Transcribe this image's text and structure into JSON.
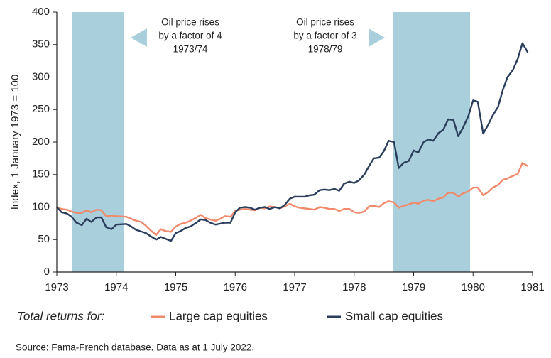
{
  "chart_data": {
    "type": "line",
    "ylabel": "Index, 1 January 1973 = 100",
    "legend_title": "Total returns for:",
    "source": "Source: Fama-French database. Data as at 1 July 2022.",
    "xlim": [
      1973,
      1981
    ],
    "xticks": [
      1973,
      1974,
      1975,
      1976,
      1977,
      1978,
      1979,
      1980,
      1981
    ],
    "ylim": [
      0,
      400
    ],
    "yticks": [
      0,
      50,
      100,
      150,
      200,
      250,
      300,
      350,
      400
    ],
    "shaded_periods": [
      {
        "x0": 1973.26,
        "x1": 1974.13,
        "color": "#a9cfdc"
      },
      {
        "x0": 1978.65,
        "x1": 1979.95,
        "color": "#a9cfdc"
      }
    ],
    "annotations": [
      {
        "lines": [
          "Oil price rises",
          "by a factor of 4",
          "1973/74"
        ]
      },
      {
        "lines": [
          "Oil price rises",
          "by a factor of 3",
          "1978/79"
        ]
      }
    ],
    "series": [
      {
        "name": "Large cap equities",
        "color": "#f08a6a",
        "x": [
          1973.0,
          1973.08,
          1973.17,
          1973.25,
          1973.33,
          1973.42,
          1973.5,
          1973.58,
          1973.67,
          1973.75,
          1973.83,
          1973.92,
          1974.0,
          1974.17,
          1974.25,
          1974.33,
          1974.42,
          1974.5,
          1974.58,
          1974.67,
          1974.75,
          1974.83,
          1974.92,
          1975.0,
          1975.08,
          1975.17,
          1975.25,
          1975.33,
          1975.42,
          1975.5,
          1975.58,
          1975.67,
          1975.75,
          1975.83,
          1975.92,
          1976.0,
          1976.08,
          1976.17,
          1976.25,
          1976.33,
          1976.42,
          1976.5,
          1976.58,
          1976.67,
          1976.75,
          1976.83,
          1976.92,
          1977.0,
          1977.08,
          1977.25,
          1977.33,
          1977.42,
          1977.5,
          1977.58,
          1977.67,
          1977.75,
          1977.83,
          1977.92,
          1978.0,
          1978.08,
          1978.17,
          1978.25,
          1978.33,
          1978.42,
          1978.5,
          1978.58,
          1978.67,
          1978.75,
          1978.83,
          1978.92,
          1979.0,
          1979.08,
          1979.17,
          1979.25,
          1979.33,
          1979.42,
          1979.5,
          1979.58,
          1979.67,
          1979.75,
          1979.83,
          1979.92,
          1980.0,
          1980.08,
          1980.17,
          1980.25,
          1980.33,
          1980.42,
          1980.5,
          1980.58,
          1980.67,
          1980.75,
          1980.83,
          1980.92
        ],
        "values": [
          100,
          97,
          96,
          93,
          91,
          91,
          95,
          92,
          96,
          95,
          86,
          87,
          86,
          85,
          82,
          79,
          77,
          71,
          64,
          57,
          66,
          63,
          62,
          70,
          74,
          76,
          79,
          83,
          88,
          83,
          81,
          79,
          82,
          86,
          85,
          94,
          96,
          97,
          96,
          95,
          99,
          98,
          101,
          100,
          98,
          101,
          105,
          101,
          99,
          97,
          96,
          100,
          99,
          97,
          97,
          94,
          97,
          97,
          92,
          91,
          93,
          101,
          102,
          100,
          106,
          109,
          107,
          99,
          102,
          104,
          107,
          105,
          110,
          111,
          109,
          113,
          115,
          122,
          122,
          116,
          121,
          124,
          130,
          130,
          118,
          123,
          130,
          134,
          142,
          144,
          148,
          151,
          168,
          163
        ]
      },
      {
        "name": "Small cap equities",
        "color": "#2b3e5c",
        "x": [
          1973.0,
          1973.08,
          1973.17,
          1973.25,
          1973.33,
          1973.42,
          1973.5,
          1973.58,
          1973.67,
          1973.75,
          1973.83,
          1973.92,
          1974.0,
          1974.17,
          1974.25,
          1974.33,
          1974.5,
          1974.58,
          1974.67,
          1974.75,
          1974.92,
          1975.0,
          1975.08,
          1975.17,
          1975.25,
          1975.33,
          1975.42,
          1975.5,
          1975.58,
          1975.67,
          1975.83,
          1975.92,
          1976.0,
          1976.08,
          1976.17,
          1976.25,
          1976.33,
          1976.42,
          1976.5,
          1976.58,
          1976.67,
          1976.75,
          1976.83,
          1976.92,
          1977.0,
          1977.17,
          1977.25,
          1977.33,
          1977.42,
          1977.5,
          1977.58,
          1977.67,
          1977.75,
          1977.83,
          1977.92,
          1978.0,
          1978.08,
          1978.17,
          1978.25,
          1978.33,
          1978.42,
          1978.5,
          1978.58,
          1978.67,
          1978.75,
          1978.83,
          1978.92,
          1979.0,
          1979.08,
          1979.17,
          1979.25,
          1979.33,
          1979.42,
          1979.5,
          1979.58,
          1979.67,
          1979.75,
          1979.83,
          1979.92,
          1980.0,
          1980.08,
          1980.17,
          1980.25,
          1980.33,
          1980.42,
          1980.5,
          1980.58,
          1980.67,
          1980.75,
          1980.83,
          1980.92
        ],
        "values": [
          100,
          92,
          90,
          85,
          76,
          72,
          82,
          77,
          84,
          84,
          69,
          66,
          73,
          74,
          70,
          65,
          60,
          55,
          50,
          54,
          48,
          60,
          63,
          68,
          70,
          75,
          81,
          80,
          76,
          73,
          76,
          76,
          92,
          99,
          100,
          99,
          96,
          99,
          100,
          97,
          100,
          98,
          103,
          113,
          116,
          116,
          118,
          119,
          126,
          127,
          126,
          128,
          125,
          136,
          139,
          137,
          141,
          150,
          163,
          175,
          176,
          186,
          202,
          200,
          160,
          168,
          171,
          187,
          184,
          200,
          204,
          202,
          214,
          219,
          235,
          234,
          209,
          222,
          240,
          264,
          262,
          213,
          226,
          241,
          254,
          280,
          300,
          311,
          328,
          352,
          338
        ]
      }
    ]
  }
}
